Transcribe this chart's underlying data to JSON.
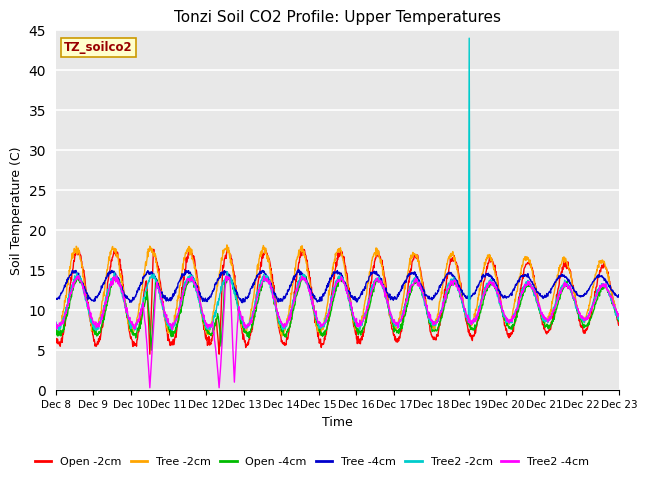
{
  "title": "Tonzi Soil CO2 Profile: Upper Temperatures",
  "ylabel": "Soil Temperature (C)",
  "xlabel": "Time",
  "watermark": "TZ_soilco2",
  "ylim": [
    0,
    45
  ],
  "plot_bg_color": "#e8e8e8",
  "series": [
    {
      "label": "Open -2cm",
      "color": "#ff0000"
    },
    {
      "label": "Tree -2cm",
      "color": "#ffa500"
    },
    {
      "label": "Open -4cm",
      "color": "#00bb00"
    },
    {
      "label": "Tree -4cm",
      "color": "#0000cc"
    },
    {
      "label": "Tree2 -2cm",
      "color": "#00cccc"
    },
    {
      "label": "Tree2 -4cm",
      "color": "#ff00ff"
    }
  ],
  "xtick_labels": [
    "Dec 8",
    "Dec 9",
    "Dec 10",
    "Dec 11",
    "Dec 12",
    "Dec 13",
    "Dec 14",
    "Dec 15",
    "Dec 16",
    "Dec 17",
    "Dec 18",
    "Dec 19",
    "Dec 20",
    "Dec 21",
    "Dec 22",
    "Dec 23"
  ],
  "n_days": 15,
  "pts_per_day": 96
}
